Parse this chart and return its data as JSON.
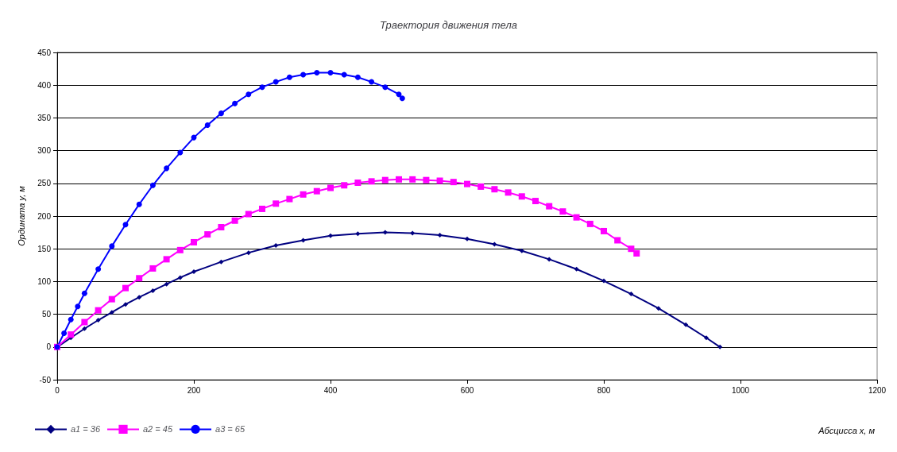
{
  "chart_data": {
    "type": "line",
    "title": "Траектория движения тела",
    "xlabel": "Абсцисса x, м",
    "ylabel": "Ордината y, м",
    "xlim": [
      0,
      1200
    ],
    "xticks": [
      0,
      200,
      400,
      600,
      800,
      1000,
      1200
    ],
    "ylim": [
      -50,
      450
    ],
    "yticks": [
      -50,
      0,
      50,
      100,
      150,
      200,
      250,
      300,
      350,
      400,
      450
    ],
    "grid": "y",
    "legend": "bottom left",
    "series": [
      {
        "name": "a1 = 36",
        "color": "#000080",
        "marker": "diamond",
        "x": [
          0,
          20,
          40,
          60,
          80,
          100,
          120,
          140,
          160,
          180,
          200,
          240,
          280,
          320,
          360,
          400,
          440,
          480,
          520,
          560,
          600,
          640,
          680,
          720,
          760,
          800,
          840,
          880,
          920,
          950,
          970
        ],
        "values": [
          0,
          14,
          28,
          41,
          53,
          65,
          76,
          86,
          96,
          106,
          115,
          130,
          144,
          155,
          163,
          170,
          173,
          175,
          174,
          171,
          165,
          157,
          147,
          134,
          119,
          101,
          81,
          59,
          34,
          14,
          0
        ]
      },
      {
        "name": "a2 = 45",
        "color": "#ff00ff",
        "marker": "square",
        "x": [
          0,
          20,
          40,
          60,
          80,
          100,
          120,
          140,
          160,
          180,
          200,
          220,
          240,
          260,
          280,
          300,
          320,
          340,
          360,
          380,
          400,
          420,
          440,
          460,
          480,
          500,
          520,
          540,
          560,
          580,
          600,
          620,
          640,
          660,
          680,
          700,
          720,
          740,
          760,
          780,
          800,
          820,
          840,
          848
        ],
        "values": [
          0,
          19,
          38,
          56,
          73,
          90,
          105,
          120,
          134,
          148,
          160,
          172,
          183,
          193,
          203,
          211,
          219,
          226,
          233,
          238,
          243,
          247,
          251,
          253,
          255,
          256,
          256,
          255,
          254,
          252,
          249,
          245,
          241,
          236,
          230,
          223,
          215,
          207,
          198,
          188,
          177,
          163,
          150,
          143
        ]
      },
      {
        "name": "a3 = 65",
        "color": "#0000ff",
        "marker": "circle",
        "x": [
          0,
          10,
          20,
          30,
          40,
          60,
          80,
          100,
          120,
          140,
          160,
          180,
          200,
          220,
          240,
          260,
          280,
          300,
          320,
          340,
          360,
          380,
          400,
          420,
          440,
          460,
          480,
          500,
          505
        ],
        "values": [
          0,
          21,
          42,
          62,
          82,
          119,
          154,
          187,
          218,
          247,
          273,
          297,
          320,
          339,
          357,
          372,
          386,
          397,
          405,
          412,
          416,
          419,
          419,
          416,
          412,
          405,
          397,
          386,
          380
        ]
      }
    ]
  }
}
